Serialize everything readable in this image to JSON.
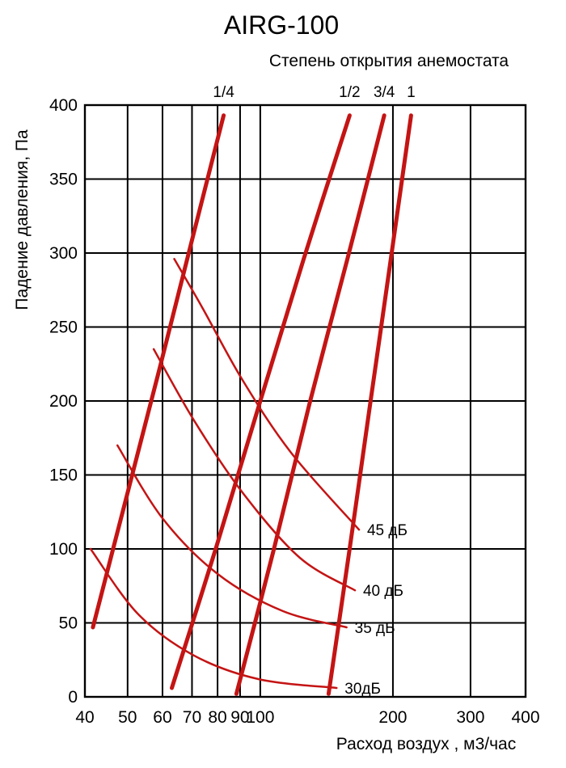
{
  "chart_data": {
    "type": "line",
    "title": "AIRG-100",
    "top_axis_title": "Степень открытия анемостата",
    "xlabel": "Расход воздух , м3/час",
    "ylabel": "Падение давления, Па",
    "x_scale": "log",
    "xlim": [
      40,
      400
    ],
    "ylim": [
      0,
      400
    ],
    "x_ticks": [
      40,
      50,
      60,
      70,
      80,
      90,
      100,
      200,
      300,
      400
    ],
    "y_ticks": [
      0,
      50,
      100,
      150,
      200,
      250,
      300,
      350,
      400
    ],
    "grid": true,
    "legend_position": "none",
    "curve_color": "#c41414",
    "axis_color": "#000000",
    "opening_series": [
      {
        "name": "1/4",
        "points": [
          [
            41.7,
            47
          ],
          [
            49.7,
            135
          ],
          [
            59.1,
            222
          ],
          [
            69.9,
            308
          ],
          [
            82.6,
            393
          ]
        ]
      },
      {
        "name": "1/2",
        "points": [
          [
            63.0,
            6
          ],
          [
            79.6,
            102
          ],
          [
            99.8,
            199
          ],
          [
            125.5,
            296
          ],
          [
            159.5,
            393
          ]
        ]
      },
      {
        "name": "3/4",
        "points": [
          [
            88.3,
            2
          ],
          [
            107.4,
            100
          ],
          [
            129.3,
            198
          ],
          [
            157.4,
            295
          ],
          [
            191.1,
            393
          ]
        ]
      },
      {
        "name": "1",
        "points": [
          [
            142.9,
            2
          ],
          [
            159.5,
            100
          ],
          [
            177.6,
            198
          ],
          [
            197.6,
            295
          ],
          [
            219.9,
            393
          ]
        ]
      }
    ],
    "noise_series": [
      {
        "name": "45 дБ",
        "points": [
          [
            63.8,
            296
          ],
          [
            73.9,
            263
          ],
          [
            91.2,
            214
          ],
          [
            117.5,
            165
          ],
          [
            167.5,
            113
          ]
        ]
      },
      {
        "name": "40 дБ",
        "points": [
          [
            57.3,
            235
          ],
          [
            70.7,
            187
          ],
          [
            91.2,
            138
          ],
          [
            123.0,
            94
          ],
          [
            164.0,
            72
          ]
        ]
      },
      {
        "name": "35 дБ",
        "points": [
          [
            47.4,
            170
          ],
          [
            59.9,
            121
          ],
          [
            80.1,
            83
          ],
          [
            112.5,
            58
          ],
          [
            157.0,
            47
          ]
        ]
      },
      {
        "name": "30дБ",
        "points": [
          [
            41.2,
            100
          ],
          [
            52.8,
            56
          ],
          [
            70.7,
            28
          ],
          [
            99.0,
            12
          ],
          [
            149.0,
            6
          ]
        ]
      }
    ]
  }
}
